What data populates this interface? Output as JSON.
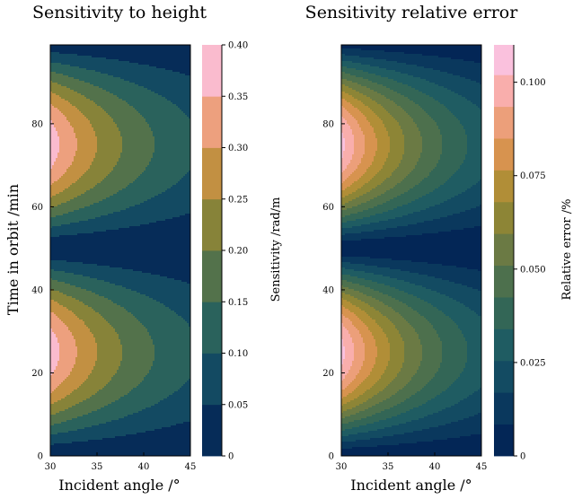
{
  "chart_data": [
    {
      "type": "contour",
      "title": "Sensitivity to height",
      "xlabel": "Incident angle /°",
      "ylabel": "Time in orbit /min",
      "colorbar_label": "Sensitivity /rad/m",
      "xlim": [
        30,
        45
      ],
      "ylim": [
        0,
        99
      ],
      "xticks": [
        "30",
        "35",
        "40",
        "45"
      ],
      "yticks": [
        "0",
        "20",
        "40",
        "60",
        "80"
      ],
      "yticks_values": [
        0,
        20,
        40,
        60,
        80
      ],
      "levels": [
        0,
        0.05,
        0.1,
        0.15,
        0.2,
        0.25,
        0.3,
        0.35,
        0.4
      ],
      "level_labels": [
        "0",
        "0.05",
        "0.10",
        "0.15",
        "0.20",
        "0.25",
        "0.30",
        "0.35",
        "0.40"
      ],
      "peak_value": 0.38,
      "peak_times": [
        25,
        75
      ],
      "period_min": 50,
      "max_at_angle": 30
    },
    {
      "type": "contour",
      "title": "Sensitivity relative error",
      "xlabel": "Incident angle /°",
      "ylabel": "",
      "colorbar_label": "Relative error /%",
      "xlim": [
        30,
        45
      ],
      "ylim": [
        0,
        99
      ],
      "xticks": [
        "30",
        "35",
        "40",
        "45"
      ],
      "yticks": [
        "0",
        "20",
        "40",
        "60",
        "80"
      ],
      "yticks_values": [
        0,
        20,
        40,
        60,
        80
      ],
      "levels": [
        0,
        0.0085,
        0.017,
        0.0255,
        0.034,
        0.0425,
        0.051,
        0.0595,
        0.068,
        0.0765,
        0.085,
        0.0935,
        0.102,
        0.11
      ],
      "level_labels": [
        "0",
        "0.025",
        "0.050",
        "0.075",
        "0.100"
      ],
      "level_label_values": [
        0,
        0.025,
        0.05,
        0.075,
        0.1
      ],
      "peak_value": 0.105,
      "peak_times": [
        25,
        75
      ],
      "period_min": 50,
      "max_at_angle": 30
    }
  ],
  "colormap": [
    "#001d52",
    "#0b3a5e",
    "#1a5a65",
    "#3a6a52",
    "#6b7a44",
    "#a38c2e",
    "#e19455",
    "#f9aca6",
    "#fbcaf5"
  ]
}
